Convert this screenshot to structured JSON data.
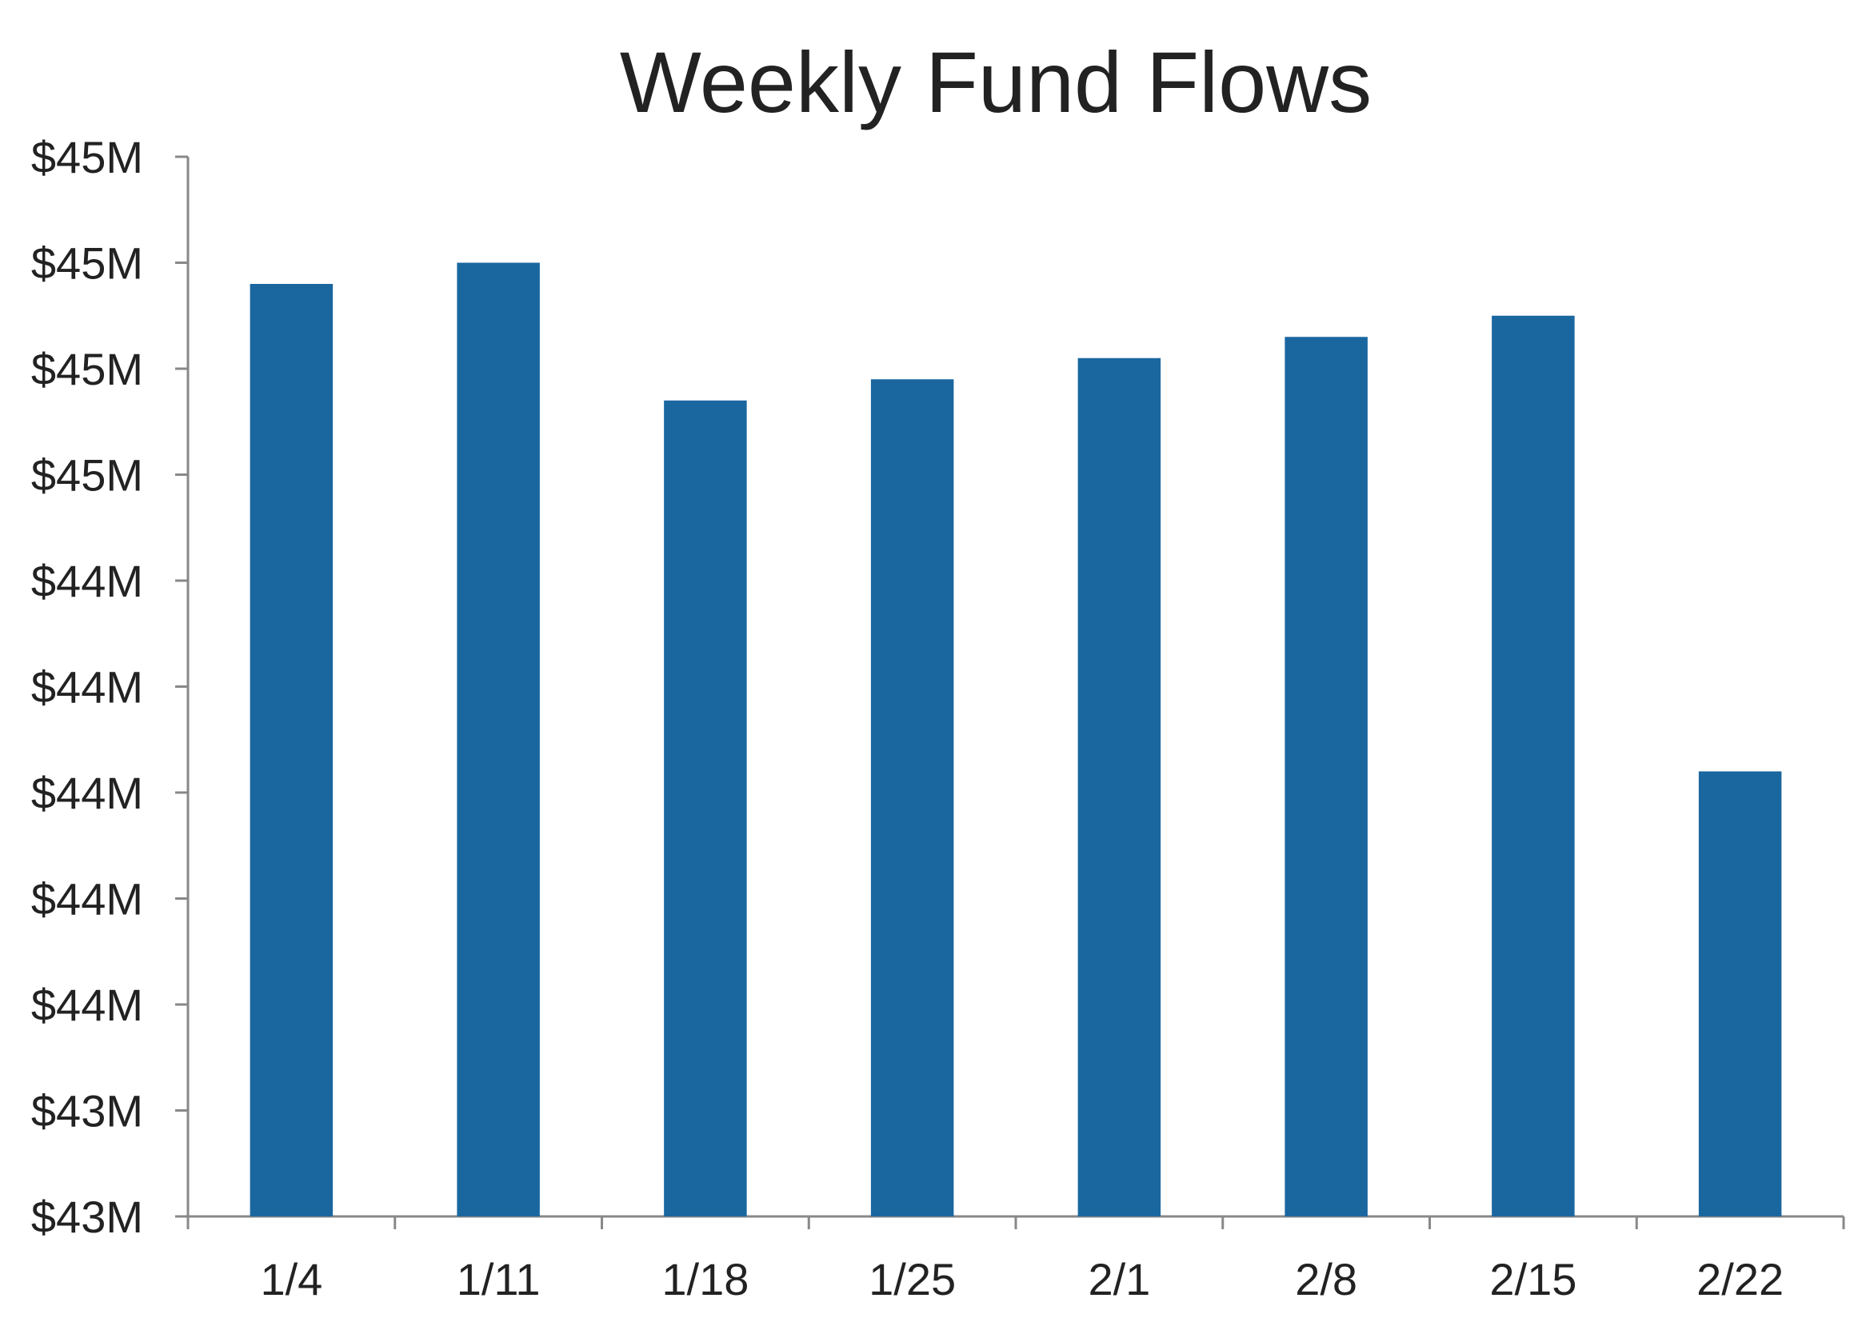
{
  "chart_data": {
    "type": "bar",
    "title": "Weekly Fund Flows",
    "xlabel": "",
    "ylabel": "",
    "categories": [
      "1/4",
      "1/11",
      "1/18",
      "1/25",
      "2/1",
      "2/8",
      "2/15",
      "2/22"
    ],
    "values": [
      44.88,
      44.9,
      44.77,
      44.79,
      44.81,
      44.83,
      44.85,
      44.42
    ],
    "ylim": [
      44.0,
      45.0
    ],
    "y_tick_labels": [
      "$43M",
      "$43M",
      "$44M",
      "$44M",
      "$44M",
      "$44M",
      "$44M",
      "$45M",
      "$45M",
      "$45M",
      "$45M"
    ],
    "bar_color": "#1a67a0",
    "axis_color": "#888888",
    "grid": false,
    "legend": "none"
  }
}
